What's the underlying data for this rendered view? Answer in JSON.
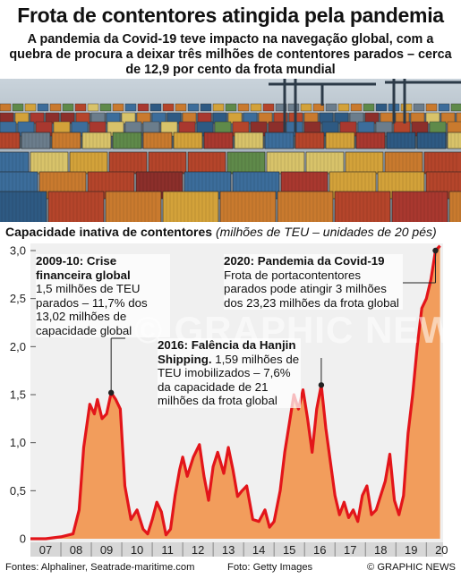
{
  "header": {
    "title": "Frota de contentores atingida pela pandemia",
    "subtitle": "A pandemia da Covid-19 teve impacto na navegação global, com a quebra de procura a deixar três milhões de contentores parados – cerca de 12,9 por cento da frota mundial"
  },
  "photo": {
    "subject": "container-port-stacks"
  },
  "chart_data": {
    "type": "area",
    "title": "Capacidade inativa de contentores",
    "unit_note": "(milhões de TEU – unidades de 20 pés)",
    "ylim": [
      0,
      3.0
    ],
    "y_ticks": [
      "3,0",
      "2,5",
      "2,0",
      "1,5",
      "1,0",
      "0,5",
      "0"
    ],
    "x_ticks": [
      "07",
      "08",
      "09",
      "10",
      "11",
      "12",
      "13",
      "14",
      "15",
      "16",
      "17",
      "18",
      "19",
      "20"
    ],
    "xlim": [
      2007.0,
      2020.55
    ],
    "grid": false,
    "colors": {
      "area": "#f29d5c",
      "line": "#e3151a",
      "panel": "#f0f0f0"
    },
    "series": [
      {
        "x": [
          2007.0,
          2007.5,
          2008.0,
          2008.4,
          2008.6,
          2008.75,
          2008.95,
          2009.1,
          2009.2,
          2009.35,
          2009.5,
          2009.65,
          2009.8,
          2009.95,
          2010.1,
          2010.3,
          2010.5,
          2010.7,
          2010.85,
          2011.0,
          2011.15,
          2011.3,
          2011.45,
          2011.6,
          2011.75,
          2011.9,
          2012.0,
          2012.15,
          2012.35,
          2012.55,
          2012.7,
          2012.85,
          2013.0,
          2013.15,
          2013.35,
          2013.5,
          2013.65,
          2013.8,
          2013.95,
          2014.1,
          2014.3,
          2014.5,
          2014.7,
          2014.85,
          2015.0,
          2015.2,
          2015.35,
          2015.5,
          2015.65,
          2015.8,
          2015.95,
          2016.1,
          2016.25,
          2016.4,
          2016.55,
          2016.7,
          2016.85,
          2017.0,
          2017.15,
          2017.3,
          2017.45,
          2017.6,
          2017.75,
          2017.9,
          2018.05,
          2018.2,
          2018.35,
          2018.5,
          2018.65,
          2018.8,
          2018.95,
          2019.1,
          2019.25,
          2019.4,
          2019.55,
          2019.7,
          2019.85,
          2020.0,
          2020.15,
          2020.3,
          2020.45
        ],
        "y": [
          0.0,
          0.0,
          0.02,
          0.05,
          0.3,
          0.95,
          1.4,
          1.3,
          1.45,
          1.25,
          1.3,
          1.52,
          1.45,
          1.35,
          0.55,
          0.2,
          0.3,
          0.1,
          0.05,
          0.2,
          0.38,
          0.28,
          0.04,
          0.1,
          0.45,
          0.72,
          0.85,
          0.65,
          0.85,
          0.98,
          0.65,
          0.4,
          0.75,
          0.9,
          0.68,
          0.95,
          0.72,
          0.44,
          0.5,
          0.55,
          0.2,
          0.18,
          0.3,
          0.12,
          0.18,
          0.5,
          0.9,
          1.2,
          1.5,
          1.35,
          1.55,
          1.25,
          0.9,
          1.35,
          1.6,
          1.15,
          0.8,
          0.45,
          0.25,
          0.38,
          0.22,
          0.3,
          0.18,
          0.45,
          0.55,
          0.25,
          0.3,
          0.45,
          0.6,
          0.88,
          0.4,
          0.25,
          0.45,
          1.1,
          1.5,
          2.0,
          2.4,
          2.5,
          2.7,
          3.0,
          3.05
        ]
      }
    ]
  },
  "annotations": [
    {
      "id": "2009",
      "title": "2009-10: Crise financeira global",
      "text": "1,5 milhões de TEU parados – 11,7% dos 13,02 milhões de capacidade global"
    },
    {
      "id": "2016",
      "title": "2016: Falência da Hanjin Shipping.",
      "text": "1,59 milhões de TEU imobilizados – 7,6% da capacidade de 21 milhões da frota global"
    },
    {
      "id": "2020",
      "title": "2020: Pandemia da Covid-19",
      "text": "Frota de portacontentores parados pode atingir 3 milhões dos 23,23 milhões da frota global"
    }
  ],
  "watermark": "© GRAPHIC NEWS",
  "footer": {
    "sources": "Fontes: Alphaliner, Seatrade-maritime.com",
    "photo_credit": "Foto: Getty Images",
    "copyright": "© GRAPHIC NEWS"
  }
}
